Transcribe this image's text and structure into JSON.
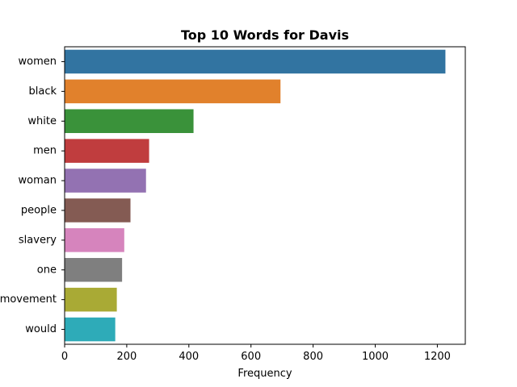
{
  "chart_data": {
    "type": "bar",
    "orientation": "horizontal",
    "title": "Top 10 Words for Davis",
    "xlabel": "Frequency",
    "ylabel": "",
    "xlim": [
      0,
      1290
    ],
    "xticks": [
      0,
      200,
      400,
      600,
      800,
      1000,
      1200
    ],
    "grid": false,
    "categories": [
      "women",
      "black",
      "white",
      "men",
      "woman",
      "people",
      "slavery",
      "one",
      "movement",
      "would"
    ],
    "values": [
      1226,
      695,
      415,
      272,
      262,
      212,
      192,
      185,
      168,
      163
    ],
    "colors": [
      "#3274a1",
      "#e1812c",
      "#3a923a",
      "#c03d3e",
      "#9372b2",
      "#845b53",
      "#d684bd",
      "#7f7f7f",
      "#a9aa35",
      "#2eabb8"
    ]
  }
}
